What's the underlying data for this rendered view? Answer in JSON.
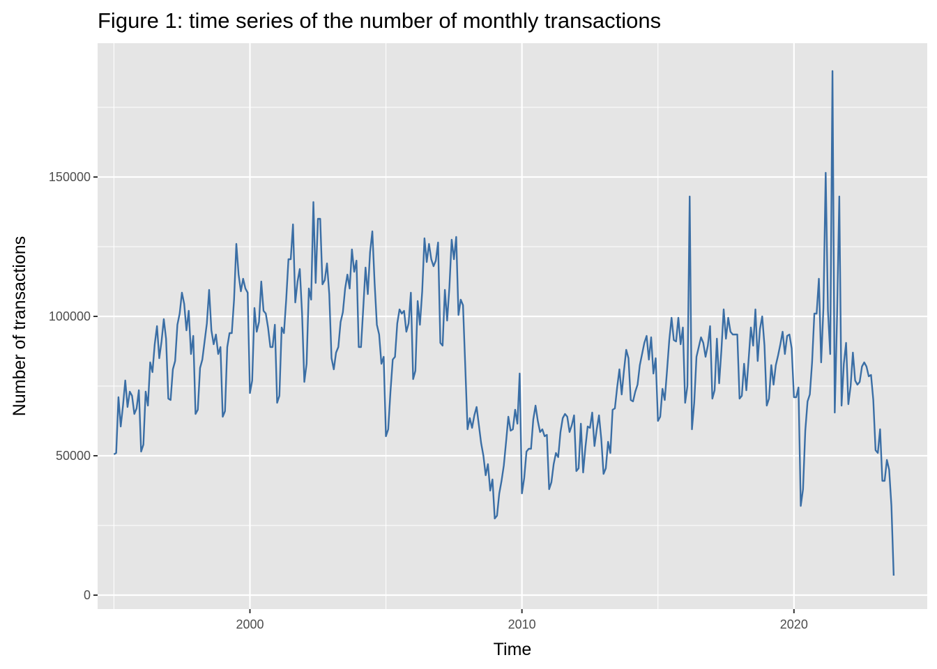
{
  "chart_data": {
    "type": "line",
    "title": "Figure 1: time series of the number of monthly transactions",
    "xlabel": "Time",
    "ylabel": "Number of transactions",
    "xlim": [
      1994.4,
      2024.9
    ],
    "ylim": [
      -5000,
      198000
    ],
    "x_ticks": [
      2000,
      2010,
      2020
    ],
    "x_tick_labels": [
      "2000",
      "2010",
      "2020"
    ],
    "y_ticks": [
      0,
      50000,
      100000,
      150000
    ],
    "y_tick_labels": [
      "0",
      "50000",
      "100000",
      "150000"
    ],
    "grid": true,
    "legend": "none",
    "colors": {
      "line": "#3a6ea5",
      "panel": "#e5e5e5",
      "grid": "#ffffff"
    },
    "series": [
      {
        "start": [
          1995,
          1
        ],
        "freq": 12,
        "values": [
          50500,
          51000,
          71000,
          60500,
          68000,
          77000,
          67500,
          73000,
          71500,
          65000,
          67000,
          73500,
          51500,
          54000,
          73000,
          68000,
          83500,
          80000,
          90000,
          96500,
          85000,
          91000,
          99000,
          92000,
          70500,
          70000,
          81000,
          84000,
          97000,
          101000,
          108500,
          104500,
          95000,
          102000,
          86500,
          93000,
          65000,
          66500,
          81500,
          84500,
          91000,
          97500,
          109500,
          95000,
          90000,
          93500,
          86500,
          89000,
          64000,
          66000,
          89000,
          94000,
          94000,
          106000,
          126000,
          115000,
          109000,
          113500,
          110000,
          108500,
          72500,
          77000,
          103000,
          94500,
          98000,
          112500,
          102000,
          101000,
          96000,
          89000,
          89000,
          97000,
          69000,
          71500,
          96000,
          94000,
          106000,
          120500,
          120500,
          133000,
          105000,
          112500,
          117000,
          101000,
          76500,
          83000,
          110000,
          106000,
          141000,
          112000,
          135000,
          135000,
          111500,
          113000,
          119000,
          108000,
          85000,
          81000,
          87000,
          89000,
          98000,
          101500,
          110000,
          115000,
          110000,
          124000,
          116000,
          120000,
          89000,
          89000,
          103000,
          117500,
          108000,
          123000,
          130500,
          112000,
          97000,
          93500,
          83000,
          85500,
          57000,
          59500,
          73000,
          84500,
          85500,
          97500,
          102500,
          101000,
          102000,
          94500,
          97500,
          108500,
          77500,
          80500,
          105500,
          97000,
          109000,
          128000,
          119500,
          126000,
          120500,
          118000,
          120000,
          126500,
          90500,
          89500,
          109500,
          98500,
          110500,
          127500,
          120500,
          128500,
          100500,
          106000,
          104000,
          82000,
          59500,
          63500,
          60000,
          64500,
          67500,
          61000,
          54500,
          50000,
          43000,
          47000,
          37500,
          41500,
          27500,
          28500,
          36500,
          41000,
          46500,
          55000,
          64000,
          59000,
          59500,
          66500,
          61500,
          79500,
          36500,
          42000,
          51500,
          52500,
          52500,
          63000,
          68000,
          62500,
          58500,
          59500,
          57000,
          57500,
          38000,
          40500,
          47000,
          51000,
          49500,
          58500,
          63500,
          65000,
          64000,
          58500,
          61000,
          64500,
          44500,
          45500,
          61500,
          44000,
          53000,
          60500,
          60000,
          65500,
          53500,
          59500,
          64500,
          56000,
          43500,
          45500,
          55000,
          51000,
          66500,
          67000,
          74500,
          81000,
          72000,
          80500,
          88000,
          85000,
          70000,
          69500,
          73000,
          75500,
          82500,
          86500,
          90500,
          93000,
          84500,
          92500,
          79500,
          85000,
          62500,
          64000,
          74000,
          70000,
          80500,
          91500,
          99500,
          91500,
          91000,
          99500,
          90000,
          96000,
          69000,
          75000,
          143000,
          59500,
          69000,
          85500,
          89000,
          92500,
          90500,
          85500,
          89500,
          96500,
          70500,
          73500,
          92000,
          76000,
          88000,
          102500,
          92000,
          99500,
          94500,
          93500,
          93500,
          93500,
          70500,
          71500,
          83000,
          73500,
          84500,
          96000,
          89500,
          102500,
          84000,
          95500,
          100000,
          89500,
          68000,
          70500,
          82500,
          75500,
          82500,
          86000,
          90000,
          94500,
          86500,
          93000,
          93500,
          88500,
          71000,
          71000,
          74500,
          32000,
          38000,
          59000,
          69500,
          72000,
          83500,
          101000,
          101000,
          113500,
          83500,
          103000,
          151500,
          102000,
          86500,
          188000,
          65500,
          99500,
          143000,
          68000,
          83000,
          90500,
          68500,
          75000,
          87000,
          77000,
          75500,
          76500,
          82000,
          83500,
          82000,
          78500,
          79000,
          70000,
          52000,
          51000,
          59500,
          41000,
          41000,
          48500,
          45000,
          32000,
          7000
        ]
      }
    ]
  }
}
